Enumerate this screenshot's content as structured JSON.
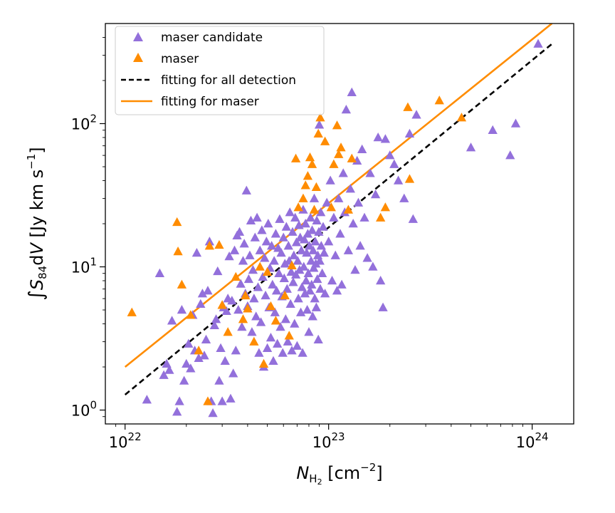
{
  "chart_data": {
    "type": "scatter",
    "xscale": "log",
    "yscale": "log",
    "xlim": [
      8e+21,
      1.6e+24
    ],
    "ylim": [
      0.8,
      500
    ],
    "xticks": [
      {
        "value": 1e+22,
        "base": "10",
        "exp": "22"
      },
      {
        "value": 1e+23,
        "base": "10",
        "exp": "23"
      },
      {
        "value": 1e+24,
        "base": "10",
        "exp": "24"
      }
    ],
    "yticks": [
      {
        "value": 1,
        "base": "10",
        "exp": "0"
      },
      {
        "value": 10,
        "base": "10",
        "exp": "1"
      },
      {
        "value": 100,
        "base": "10",
        "exp": "2"
      }
    ],
    "xlabel": {
      "main": "N",
      "sub": "H",
      "sub2": "2",
      "rest": " [cm",
      "sup": "−2",
      "end": "]"
    },
    "ylabel": {
      "integral": "∫",
      "main": "S",
      "sub": "84",
      "mid": "d",
      "var": "V",
      "rest": " [Jy km s",
      "sup": "−1",
      "end": "]"
    },
    "legend_position": "top-left",
    "colors": {
      "candidate": "#9370db",
      "maser": "#ff8c00",
      "fit_all": "#000000",
      "fit_maser": "#ff8c00"
    },
    "legend": [
      {
        "label": "maser candidate",
        "kind": "triangle",
        "color": "#9370db"
      },
      {
        "label": "maser",
        "kind": "triangle",
        "color": "#ff8c00"
      },
      {
        "label": "fitting for all detection",
        "kind": "dashed",
        "color": "#000000"
      },
      {
        "label": "fitting for maser",
        "kind": "solid",
        "color": "#ff8c00"
      }
    ],
    "fits": [
      {
        "name": "fitting for all detection",
        "style": "dashed",
        "color": "#000000",
        "x": [
          1e+22,
          1.25e+24
        ],
        "y": [
          1.28,
          360
        ]
      },
      {
        "name": "fitting for maser",
        "style": "solid",
        "color": "#ff8c00",
        "x": [
          1e+22,
          1.25e+24
        ],
        "y": [
          2.0,
          500
        ]
      }
    ],
    "series": [
      {
        "name": "maser candidate",
        "color": "#9370db",
        "points": [
          [
            1.28e+22,
            1.18
          ],
          [
            1.48e+22,
            9.0
          ],
          [
            1.55e+22,
            1.75
          ],
          [
            1.6e+22,
            2.1
          ],
          [
            1.65e+22,
            1.9
          ],
          [
            1.7e+22,
            4.2
          ],
          [
            1.8e+22,
            0.97
          ],
          [
            1.85e+22,
            1.15
          ],
          [
            1.9e+22,
            5.0
          ],
          [
            1.95e+22,
            1.6
          ],
          [
            2e+22,
            2.1
          ],
          [
            2.05e+22,
            2.9
          ],
          [
            2.1e+22,
            1.95
          ],
          [
            2.15e+22,
            4.6
          ],
          [
            2.2e+22,
            2.6
          ],
          [
            2.25e+22,
            12.5
          ],
          [
            2.3e+22,
            2.3
          ],
          [
            2.35e+22,
            5.5
          ],
          [
            2.4e+22,
            6.5
          ],
          [
            2.45e+22,
            2.4
          ],
          [
            2.5e+22,
            3.1
          ],
          [
            2.55e+22,
            6.8
          ],
          [
            2.6e+22,
            15.0
          ],
          [
            2.65e+22,
            1.15
          ],
          [
            2.7e+22,
            0.95
          ],
          [
            2.75e+22,
            3.9
          ],
          [
            2.8e+22,
            4.3
          ],
          [
            2.85e+22,
            9.3
          ],
          [
            2.9e+22,
            1.6
          ],
          [
            2.95e+22,
            2.7
          ],
          [
            3e+22,
            1.15
          ],
          [
            3.05e+22,
            5.2
          ],
          [
            3.1e+22,
            2.2
          ],
          [
            3.15e+22,
            4.9
          ],
          [
            3.2e+22,
            6.0
          ],
          [
            3.25e+22,
            11.8
          ],
          [
            3.3e+22,
            1.2
          ],
          [
            3.35e+22,
            5.8
          ],
          [
            3.4e+22,
            1.8
          ],
          [
            3.45e+22,
            13.0
          ],
          [
            3.5e+22,
            2.6
          ],
          [
            3.55e+22,
            16.5
          ],
          [
            3.6e+22,
            5.0
          ],
          [
            3.65e+22,
            17.5
          ],
          [
            3.7e+22,
            7.6
          ],
          [
            3.75e+22,
            3.8
          ],
          [
            3.8e+22,
            11.0
          ],
          [
            3.85e+22,
            14.5
          ],
          [
            3.9e+22,
            6.5
          ],
          [
            3.95e+22,
            34.0
          ],
          [
            4e+22,
            5.3
          ],
          [
            4.05e+22,
            8.2
          ],
          [
            4.1e+22,
            12.0
          ],
          [
            4.15e+22,
            21.0
          ],
          [
            4.2e+22,
            3.5
          ],
          [
            4.25e+22,
            9.5
          ],
          [
            4.3e+22,
            6.0
          ],
          [
            4.35e+22,
            16.0
          ],
          [
            4.4e+22,
            4.5
          ],
          [
            4.45e+22,
            22.0
          ],
          [
            4.5e+22,
            7.2
          ],
          [
            4.55e+22,
            2.5
          ],
          [
            4.6e+22,
            13.0
          ],
          [
            4.65e+22,
            4.1
          ],
          [
            4.7e+22,
            18.0
          ],
          [
            4.75e+22,
            8.5
          ],
          [
            4.8e+22,
            2.0
          ],
          [
            4.85e+22,
            11.5
          ],
          [
            4.9e+22,
            6.3
          ],
          [
            4.95e+22,
            15.0
          ],
          [
            5e+22,
            2.7
          ],
          [
            5.05e+22,
            20.0
          ],
          [
            5.1e+22,
            5.2
          ],
          [
            5.15e+22,
            9.8
          ],
          [
            5.2e+22,
            3.2
          ],
          [
            5.25e+22,
            14.0
          ],
          [
            5.3e+22,
            7.5
          ],
          [
            5.35e+22,
            2.2
          ],
          [
            5.4e+22,
            11.0
          ],
          [
            5.45e+22,
            4.8
          ],
          [
            5.5e+22,
            17.0
          ],
          [
            5.55e+22,
            6.8
          ],
          [
            5.6e+22,
            2.9
          ],
          [
            5.65e+22,
            13.5
          ],
          [
            5.7e+22,
            9.0
          ],
          [
            5.75e+22,
            21.5
          ],
          [
            5.8e+22,
            3.8
          ],
          [
            5.85e+22,
            12.5
          ],
          [
            5.9e+22,
            6.2
          ],
          [
            5.95e+22,
            2.5
          ],
          [
            6e+22,
            16.0
          ],
          [
            6.05e+22,
            8.3
          ],
          [
            6.1e+22,
            10.5
          ],
          [
            6.15e+22,
            4.3
          ],
          [
            6.2e+22,
            19.0
          ],
          [
            6.25e+22,
            7.0
          ],
          [
            6.3e+22,
            3.0
          ],
          [
            6.35e+22,
            14.0
          ],
          [
            6.4e+22,
            11.0
          ],
          [
            6.45e+22,
            24.0
          ],
          [
            6.5e+22,
            5.5
          ],
          [
            6.55e+22,
            9.2
          ],
          [
            6.6e+22,
            2.6
          ],
          [
            6.65e+22,
            17.5
          ],
          [
            6.7e+22,
            7.8
          ],
          [
            6.75e+22,
            12.0
          ],
          [
            6.8e+22,
            4.0
          ],
          [
            6.85e+22,
            22.0
          ],
          [
            6.9e+22,
            8.8
          ],
          [
            6.95e+22,
            14.8
          ],
          [
            7e+22,
            2.8
          ],
          [
            7.05e+22,
            11.0
          ],
          [
            7.1e+22,
            6.0
          ],
          [
            7.15e+22,
            19.5
          ],
          [
            7.2e+22,
            9.5
          ],
          [
            7.25e+22,
            16.0
          ],
          [
            7.3e+22,
            4.8
          ],
          [
            7.35e+22,
            13.0
          ],
          [
            7.4e+22,
            7.2
          ],
          [
            7.45e+22,
            2.5
          ],
          [
            7.5e+22,
            25.0
          ],
          [
            7.55e+22,
            10.0
          ],
          [
            7.6e+22,
            15.5
          ],
          [
            7.65e+22,
            6.5
          ],
          [
            7.7e+22,
            20.0
          ],
          [
            7.75e+22,
            8.0
          ],
          [
            7.8e+22,
            12.5
          ],
          [
            7.85e+22,
            5.0
          ],
          [
            7.9e+22,
            17.0
          ],
          [
            7.95e+22,
            9.0
          ],
          [
            8e+22,
            3.5
          ],
          [
            8.05e+22,
            14.0
          ],
          [
            8.1e+22,
            6.8
          ],
          [
            8.15e+22,
            22.0
          ],
          [
            8.2e+22,
            11.0
          ],
          [
            8.25e+22,
            7.5
          ],
          [
            8.3e+22,
            18.0
          ],
          [
            8.35e+22,
            4.5
          ],
          [
            8.4e+22,
            13.0
          ],
          [
            8.45e+22,
            9.8
          ],
          [
            8.5e+22,
            30.0
          ],
          [
            8.55e+22,
            6.0
          ],
          [
            8.6e+22,
            15.0
          ],
          [
            8.65e+22,
            10.5
          ],
          [
            8.7e+22,
            5.2
          ],
          [
            8.75e+22,
            21.0
          ],
          [
            8.8e+22,
            8.2
          ],
          [
            8.85e+22,
            12.0
          ],
          [
            8.9e+22,
            3.1
          ],
          [
            8.95e+22,
            17.5
          ],
          [
            9e+22,
            98.0
          ],
          [
            9.05e+22,
            11.0
          ],
          [
            9.1e+22,
            7.0
          ],
          [
            9.15e+22,
            24.0
          ],
          [
            9.2e+22,
            14.0
          ],
          [
            9.3e+22,
            9.0
          ],
          [
            9.4e+22,
            19.0
          ],
          [
            9.5e+22,
            12.5
          ],
          [
            9.6e+22,
            6.5
          ],
          [
            9.8e+22,
            28.0
          ],
          [
            1e+23,
            15.0
          ],
          [
            1.02e+23,
            40.0
          ],
          [
            1.04e+23,
            8.0
          ],
          [
            1.06e+23,
            22.0
          ],
          [
            1.08e+23,
            12.0
          ],
          [
            1.1e+23,
            6.8
          ],
          [
            1.12e+23,
            30.0
          ],
          [
            1.14e+23,
            17.0
          ],
          [
            1.16e+23,
            7.5
          ],
          [
            1.18e+23,
            45.0
          ],
          [
            1.2e+23,
            24.0
          ],
          [
            1.22e+23,
            125.0
          ],
          [
            1.25e+23,
            13.0
          ],
          [
            1.28e+23,
            35.0
          ],
          [
            1.3e+23,
            165.0
          ],
          [
            1.32e+23,
            20.0
          ],
          [
            1.35e+23,
            9.5
          ],
          [
            1.38e+23,
            55.0
          ],
          [
            1.4e+23,
            28.0
          ],
          [
            1.43e+23,
            14.0
          ],
          [
            1.46e+23,
            66.0
          ],
          [
            1.5e+23,
            22.0
          ],
          [
            1.55e+23,
            11.5
          ],
          [
            1.6e+23,
            45.0
          ],
          [
            1.65e+23,
            10.0
          ],
          [
            1.7e+23,
            32.0
          ],
          [
            1.75e+23,
            80.0
          ],
          [
            1.8e+23,
            8.0
          ],
          [
            1.85e+23,
            5.2
          ],
          [
            1.9e+23,
            78.0
          ],
          [
            2e+23,
            60.0
          ],
          [
            2.1e+23,
            52.0
          ],
          [
            2.2e+23,
            40.0
          ],
          [
            2.35e+23,
            30.0
          ],
          [
            2.5e+23,
            85.0
          ],
          [
            2.6e+23,
            21.5
          ],
          [
            2.7e+23,
            115.0
          ],
          [
            5e+23,
            68.0
          ],
          [
            6.4e+23,
            90.0
          ],
          [
            7.8e+23,
            60.0
          ],
          [
            8.3e+23,
            100.0
          ],
          [
            1.07e+24,
            360.0
          ]
        ]
      },
      {
        "name": "maser",
        "color": "#ff8c00",
        "points": [
          [
            1.08e+22,
            4.8
          ],
          [
            1.8e+22,
            20.5
          ],
          [
            1.82e+22,
            12.8
          ],
          [
            1.9e+22,
            7.5
          ],
          [
            2.1e+22,
            4.6
          ],
          [
            2.3e+22,
            2.6
          ],
          [
            2.55e+22,
            1.15
          ],
          [
            2.6e+22,
            14.0
          ],
          [
            2.9e+22,
            14.2
          ],
          [
            3e+22,
            5.4
          ],
          [
            3.2e+22,
            3.5
          ],
          [
            3.5e+22,
            8.5
          ],
          [
            3.8e+22,
            4.3
          ],
          [
            3.9e+22,
            6.3
          ],
          [
            4e+22,
            5.1
          ],
          [
            4.3e+22,
            3.0
          ],
          [
            4.6e+22,
            10.0
          ],
          [
            4.8e+22,
            2.1
          ],
          [
            5e+22,
            9.2
          ],
          [
            5.2e+22,
            5.3
          ],
          [
            5.5e+22,
            4.2
          ],
          [
            6.1e+22,
            6.3
          ],
          [
            6.4e+22,
            3.3
          ],
          [
            6.6e+22,
            10.2
          ],
          [
            6.9e+22,
            57.0
          ],
          [
            7.1e+22,
            26.0
          ],
          [
            7.5e+22,
            30.0
          ],
          [
            7.7e+22,
            37.0
          ],
          [
            7.9e+22,
            43.0
          ],
          [
            8.1e+22,
            58.0
          ],
          [
            8.3e+22,
            52.0
          ],
          [
            8.5e+22,
            25.0
          ],
          [
            8.7e+22,
            36.0
          ],
          [
            8.9e+22,
            85.0
          ],
          [
            9.1e+22,
            110.0
          ],
          [
            9.6e+22,
            75.0
          ],
          [
            1.03e+23,
            26.0
          ],
          [
            1.06e+23,
            52.0
          ],
          [
            1.1e+23,
            97.0
          ],
          [
            1.12e+23,
            61.0
          ],
          [
            1.15e+23,
            68.0
          ],
          [
            1.25e+23,
            25.0
          ],
          [
            1.3e+23,
            57.0
          ],
          [
            1.8e+23,
            22.0
          ],
          [
            1.9e+23,
            26.0
          ],
          [
            2.45e+23,
            130.0
          ],
          [
            2.5e+23,
            41.0
          ],
          [
            3.5e+23,
            145.0
          ],
          [
            4.5e+23,
            110.0
          ]
        ]
      }
    ]
  }
}
